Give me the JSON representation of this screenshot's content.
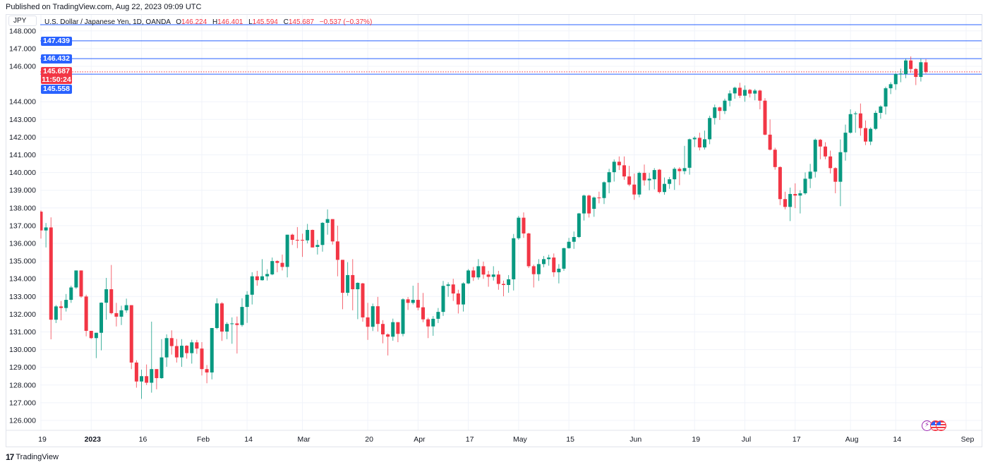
{
  "header": {
    "published": "Published on TradingView.com, Aug 22, 2023 09:09 UTC"
  },
  "symbol_box": "JPY",
  "legend": {
    "title": "U.S. Dollar / Japanese Yen, 1D, OANDA",
    "open_key": "O",
    "open": "146.224",
    "high_key": "H",
    "high": "146.401",
    "low_key": "L",
    "low": "145.594",
    "close_key": "C",
    "close": "145.687",
    "change": "−0.537 (−0.37%)"
  },
  "price_labels": {
    "line1": "147.439",
    "line2": "146.432",
    "last_price": "145.687",
    "countdown": "11:50:24",
    "line3": "145.558"
  },
  "footer": {
    "logo": "17",
    "brand": "TradingView"
  },
  "events": [
    {
      "icon": "lightning-icon"
    },
    {
      "icon": "us-flag-icon"
    },
    {
      "icon": "us-flag-icon"
    }
  ],
  "colors": {
    "up": "#089981",
    "down": "#f23645",
    "line": "#2962ff",
    "grid": "#f0f3fa"
  },
  "chart_data": {
    "type": "candlestick",
    "title": "U.S. Dollar / Japanese Yen, 1D, OANDA",
    "ylim": [
      125.5,
      148.9
    ],
    "y_ticks": [
      {
        "v": 148,
        "label": "148.000"
      },
      {
        "v": 147,
        "label": "147.000"
      },
      {
        "v": 146,
        "label": "146.000"
      },
      {
        "v": 144,
        "label": "144.000"
      },
      {
        "v": 143,
        "label": "143.000"
      },
      {
        "v": 142,
        "label": "142.000"
      },
      {
        "v": 141,
        "label": "141.000"
      },
      {
        "v": 140,
        "label": "140.000"
      },
      {
        "v": 139,
        "label": "139.000"
      },
      {
        "v": 138,
        "label": "138.000"
      },
      {
        "v": 137,
        "label": "137.000"
      },
      {
        "v": 136,
        "label": "136.000"
      },
      {
        "v": 135,
        "label": "135.000"
      },
      {
        "v": 134,
        "label": "134.000"
      },
      {
        "v": 133,
        "label": "133.000"
      },
      {
        "v": 132,
        "label": "132.000"
      },
      {
        "v": 131,
        "label": "131.000"
      },
      {
        "v": 130,
        "label": "130.000"
      },
      {
        "v": 129,
        "label": "129.000"
      },
      {
        "v": 128,
        "label": "128.000"
      },
      {
        "v": 127,
        "label": "127.000"
      },
      {
        "v": 126,
        "label": "126.000"
      }
    ],
    "x_ticks": [
      {
        "i": 0,
        "label": "19"
      },
      {
        "i": 10,
        "label": "2023"
      },
      {
        "i": 20,
        "label": "16"
      },
      {
        "i": 32,
        "label": "Feb"
      },
      {
        "i": 41,
        "label": "14"
      },
      {
        "i": 52,
        "label": "Mar"
      },
      {
        "i": 65,
        "label": "20"
      },
      {
        "i": 75,
        "label": "Apr"
      },
      {
        "i": 85,
        "label": "17"
      },
      {
        "i": 95,
        "label": "May"
      },
      {
        "i": 105,
        "label": "15"
      },
      {
        "i": 118,
        "label": "Jun"
      },
      {
        "i": 130,
        "label": "19"
      },
      {
        "i": 140,
        "label": "Jul"
      },
      {
        "i": 150,
        "label": "17"
      },
      {
        "i": 161,
        "label": "Aug"
      },
      {
        "i": 170,
        "label": "14"
      },
      {
        "i": 184,
        "label": "Sep"
      }
    ],
    "horizontal_lines": [
      {
        "price": 148.35,
        "style": "solid",
        "color": "#2962ff"
      },
      {
        "price": 147.439,
        "style": "solid",
        "color": "#2962ff"
      },
      {
        "price": 146.432,
        "style": "solid",
        "color": "#2962ff"
      },
      {
        "price": 145.558,
        "style": "solid",
        "color": "#2962ff"
      },
      {
        "price": 145.687,
        "style": "dotted",
        "color": "#f23645"
      }
    ],
    "ohlc_fields": [
      "open",
      "high",
      "low",
      "close"
    ],
    "candles": [
      [
        137.79,
        137.86,
        136.27,
        136.73
      ],
      [
        136.73,
        137.15,
        135.77,
        136.9
      ],
      [
        136.9,
        137.47,
        130.58,
        131.69
      ],
      [
        131.69,
        132.52,
        131.5,
        132.44
      ],
      [
        132.44,
        132.75,
        131.65,
        132.35
      ],
      [
        132.35,
        133.14,
        132.15,
        132.81
      ],
      [
        132.81,
        133.61,
        132.64,
        133.51
      ],
      [
        133.51,
        134.47,
        133.43,
        134.47
      ],
      [
        134.47,
        134.47,
        132.93,
        133.0
      ],
      [
        133.0,
        133.1,
        130.75,
        131.06
      ],
      [
        131.06,
        131.06,
        130.6,
        130.65
      ],
      [
        130.65,
        130.95,
        129.52,
        130.95
      ],
      [
        130.95,
        132.67,
        129.96,
        132.65
      ],
      [
        132.65,
        134.05,
        131.69,
        133.41
      ],
      [
        133.41,
        134.78,
        131.99,
        132.06
      ],
      [
        132.06,
        132.64,
        131.31,
        131.86
      ],
      [
        131.86,
        132.48,
        131.39,
        132.22
      ],
      [
        132.22,
        132.88,
        132.08,
        132.51
      ],
      [
        132.51,
        132.51,
        128.9,
        129.27
      ],
      [
        129.27,
        129.4,
        127.85,
        128.2
      ],
      [
        128.2,
        128.87,
        127.22,
        128.5
      ],
      [
        128.5,
        129.16,
        128.0,
        128.13
      ],
      [
        128.13,
        131.58,
        127.57,
        128.9
      ],
      [
        128.9,
        128.9,
        127.76,
        128.39
      ],
      [
        128.39,
        130.59,
        128.35,
        129.56
      ],
      [
        129.56,
        130.86,
        129.03,
        130.65
      ],
      [
        130.65,
        131.09,
        129.72,
        130.2
      ],
      [
        130.2,
        130.6,
        129.27,
        129.56
      ],
      [
        129.56,
        130.59,
        129.03,
        130.22
      ],
      [
        130.22,
        130.25,
        129.49,
        129.8
      ],
      [
        129.8,
        130.56,
        129.21,
        130.41
      ],
      [
        130.41,
        130.55,
        129.76,
        130.06
      ],
      [
        130.06,
        130.42,
        128.54,
        128.9
      ],
      [
        128.9,
        129.13,
        128.1,
        128.71
      ],
      [
        128.71,
        131.22,
        128.32,
        131.22
      ],
      [
        131.22,
        132.9,
        131.15,
        132.61
      ],
      [
        132.61,
        132.68,
        130.49,
        131.02
      ],
      [
        131.02,
        131.55,
        130.59,
        131.45
      ],
      [
        131.45,
        131.82,
        130.33,
        131.48
      ],
      [
        131.48,
        131.87,
        129.78,
        131.39
      ],
      [
        131.39,
        132.9,
        131.3,
        132.41
      ],
      [
        132.41,
        133.3,
        131.51,
        133.1
      ],
      [
        133.1,
        134.37,
        132.55,
        134.14
      ],
      [
        134.14,
        134.45,
        133.61,
        133.92
      ],
      [
        133.92,
        135.11,
        133.9,
        134.14
      ],
      [
        134.14,
        134.54,
        133.9,
        134.27
      ],
      [
        134.25,
        135.2,
        134.2,
        135.0
      ],
      [
        135.0,
        135.05,
        134.37,
        134.9
      ],
      [
        134.9,
        135.37,
        134.47,
        134.67
      ],
      [
        134.67,
        136.49,
        134.08,
        136.49
      ],
      [
        136.49,
        136.55,
        135.91,
        136.2
      ],
      [
        136.2,
        136.92,
        135.73,
        136.17
      ],
      [
        136.2,
        136.55,
        135.24,
        136.17
      ],
      [
        136.17,
        137.1,
        136.0,
        136.76
      ],
      [
        136.76,
        136.78,
        135.77,
        135.77
      ],
      [
        135.8,
        136.2,
        135.37,
        135.91
      ],
      [
        135.91,
        137.2,
        135.53,
        137.16
      ],
      [
        137.16,
        137.92,
        136.49,
        137.37
      ],
      [
        137.37,
        137.37,
        135.93,
        136.11
      ],
      [
        136.11,
        137.0,
        134.14,
        135.07
      ],
      [
        135.07,
        135.07,
        132.28,
        133.21
      ],
      [
        133.21,
        134.94,
        133.04,
        134.21
      ],
      [
        134.21,
        135.11,
        132.22,
        133.41
      ],
      [
        133.41,
        133.8,
        131.72,
        133.77
      ],
      [
        133.74,
        133.77,
        131.58,
        131.82
      ],
      [
        131.82,
        132.64,
        130.55,
        131.29
      ],
      [
        131.29,
        132.6,
        131.05,
        132.45
      ],
      [
        132.45,
        132.98,
        131.02,
        131.45
      ],
      [
        131.45,
        131.66,
        130.36,
        130.86
      ],
      [
        130.86,
        130.92,
        129.67,
        130.73
      ],
      [
        130.73,
        131.75,
        130.5,
        131.55
      ],
      [
        131.55,
        131.55,
        130.42,
        130.89
      ],
      [
        130.89,
        132.9,
        130.75,
        132.84
      ],
      [
        132.84,
        132.97,
        132.24,
        132.64
      ],
      [
        132.64,
        133.61,
        132.55,
        132.81
      ],
      [
        132.81,
        133.77,
        132.22,
        132.37
      ],
      [
        132.39,
        133.2,
        131.55,
        131.71
      ],
      [
        131.71,
        131.8,
        130.65,
        131.31
      ],
      [
        131.31,
        131.9,
        130.78,
        131.74
      ],
      [
        131.74,
        132.35,
        131.5,
        132.13
      ],
      [
        132.13,
        133.88,
        131.9,
        133.6
      ],
      [
        133.6,
        133.8,
        132.98,
        133.68
      ],
      [
        133.68,
        134.0,
        132.75,
        133.17
      ],
      [
        133.17,
        133.38,
        132.04,
        132.55
      ],
      [
        132.55,
        133.8,
        132.15,
        133.74
      ],
      [
        133.74,
        134.55,
        133.7,
        134.47
      ],
      [
        134.47,
        134.67,
        133.88,
        134.08
      ],
      [
        134.08,
        135.11,
        133.95,
        134.71
      ],
      [
        134.71,
        134.97,
        134.0,
        134.24
      ],
      [
        134.24,
        134.45,
        133.55,
        134.11
      ],
      [
        134.11,
        134.71,
        133.9,
        134.24
      ],
      [
        134.24,
        134.45,
        133.38,
        133.71
      ],
      [
        133.71,
        133.9,
        133.01,
        133.65
      ],
      [
        133.65,
        134.21,
        133.21,
        133.97
      ],
      [
        133.97,
        136.53,
        133.34,
        136.29
      ],
      [
        136.29,
        137.55,
        136.2,
        137.45
      ],
      [
        137.45,
        137.75,
        136.31,
        136.56
      ],
      [
        136.56,
        136.6,
        134.61,
        134.71
      ],
      [
        134.71,
        134.8,
        133.51,
        134.26
      ],
      [
        134.26,
        135.11,
        133.88,
        134.83
      ],
      [
        134.83,
        135.29,
        134.65,
        135.11
      ],
      [
        135.11,
        135.36,
        134.74,
        135.2
      ],
      [
        135.2,
        135.43,
        134.11,
        134.37
      ],
      [
        134.37,
        134.83,
        133.74,
        134.57
      ],
      [
        134.57,
        135.75,
        134.45,
        135.73
      ],
      [
        135.73,
        136.31,
        135.7,
        136.09
      ],
      [
        136.09,
        136.67,
        135.69,
        136.36
      ],
      [
        136.36,
        137.72,
        136.3,
        137.69
      ],
      [
        137.69,
        138.75,
        137.29,
        138.7
      ],
      [
        138.7,
        138.75,
        137.46,
        137.69
      ],
      [
        137.95,
        138.65,
        137.5,
        138.59
      ],
      [
        138.59,
        138.92,
        138.26,
        138.56
      ],
      [
        138.56,
        139.5,
        138.22,
        139.45
      ],
      [
        139.45,
        140.21,
        138.83,
        140.02
      ],
      [
        140.02,
        140.74,
        139.49,
        140.61
      ],
      [
        140.61,
        140.91,
        140.14,
        140.41
      ],
      [
        140.41,
        140.91,
        139.59,
        139.78
      ],
      [
        139.78,
        140.38,
        139.23,
        139.32
      ],
      [
        139.32,
        139.94,
        138.46,
        138.76
      ],
      [
        138.76,
        140.05,
        138.6,
        139.98
      ],
      [
        139.98,
        140.45,
        139.26,
        139.56
      ],
      [
        139.56,
        139.98,
        139.0,
        139.65
      ],
      [
        139.62,
        140.25,
        139.05,
        140.14
      ],
      [
        140.16,
        140.2,
        138.82,
        138.9
      ],
      [
        138.9,
        139.72,
        138.75,
        139.36
      ],
      [
        139.36,
        139.75,
        139.08,
        139.62
      ],
      [
        139.62,
        140.3,
        139.02,
        140.21
      ],
      [
        140.21,
        140.3,
        139.29,
        140.08
      ],
      [
        140.08,
        141.51,
        139.9,
        140.25
      ],
      [
        140.27,
        141.92,
        139.88,
        141.88
      ],
      [
        141.88,
        142.05,
        141.44,
        141.96
      ],
      [
        141.96,
        142.25,
        141.25,
        141.42
      ],
      [
        141.42,
        142.37,
        141.3,
        141.88
      ],
      [
        141.88,
        143.21,
        141.6,
        143.08
      ],
      [
        143.08,
        143.84,
        142.71,
        143.68
      ],
      [
        143.68,
        143.72,
        142.97,
        143.48
      ],
      [
        143.48,
        144.17,
        143.3,
        144.06
      ],
      [
        144.06,
        144.64,
        143.74,
        144.47
      ],
      [
        144.47,
        144.85,
        144.17,
        144.79
      ],
      [
        144.79,
        145.07,
        144.21,
        144.34
      ],
      [
        144.34,
        144.92,
        144.0,
        144.67
      ],
      [
        144.67,
        144.72,
        144.24,
        144.46
      ],
      [
        144.46,
        144.72,
        144.08,
        144.63
      ],
      [
        144.63,
        144.68,
        143.57,
        144.06
      ],
      [
        144.06,
        144.2,
        142.1,
        142.14
      ],
      [
        142.14,
        143.0,
        141.25,
        141.29
      ],
      [
        141.29,
        141.4,
        140.16,
        140.31
      ],
      [
        140.31,
        140.35,
        138.16,
        138.5
      ],
      [
        138.5,
        138.92,
        137.92,
        138.06
      ],
      [
        138.06,
        139.15,
        137.26,
        138.79
      ],
      [
        138.79,
        139.39,
        137.99,
        138.7
      ],
      [
        138.7,
        139.0,
        137.69,
        138.83
      ],
      [
        138.83,
        140.01,
        138.75,
        139.65
      ],
      [
        139.65,
        140.49,
        139.12,
        140.05
      ],
      [
        140.05,
        141.92,
        139.72,
        141.85
      ],
      [
        141.85,
        141.9,
        140.75,
        141.47
      ],
      [
        141.47,
        141.71,
        140.75,
        140.91
      ],
      [
        140.91,
        141.24,
        139.95,
        140.25
      ],
      [
        140.25,
        140.3,
        138.83,
        139.48
      ],
      [
        139.48,
        141.87,
        138.1,
        141.15
      ],
      [
        141.15,
        142.71,
        140.67,
        142.25
      ],
      [
        142.25,
        143.57,
        142.2,
        143.3
      ],
      [
        143.3,
        143.45,
        142.25,
        143.34
      ],
      [
        143.34,
        143.9,
        142.08,
        142.51
      ],
      [
        142.51,
        142.94,
        141.55,
        141.75
      ],
      [
        141.75,
        142.55,
        141.55,
        142.47
      ],
      [
        142.47,
        143.5,
        142.4,
        143.37
      ],
      [
        143.37,
        143.8,
        143.04,
        143.73
      ],
      [
        143.73,
        144.85,
        143.28,
        144.76
      ],
      [
        144.76,
        145.1,
        144.43,
        144.99
      ],
      [
        144.99,
        145.62,
        144.67,
        145.56
      ],
      [
        145.56,
        145.87,
        145.1,
        145.59
      ],
      [
        145.56,
        146.43,
        145.33,
        146.33
      ],
      [
        146.33,
        146.56,
        145.63,
        145.85
      ],
      [
        145.85,
        145.9,
        144.94,
        145.4
      ],
      [
        145.4,
        146.43,
        145.14,
        146.23
      ],
      [
        146.224,
        146.401,
        145.594,
        145.687
      ]
    ]
  }
}
